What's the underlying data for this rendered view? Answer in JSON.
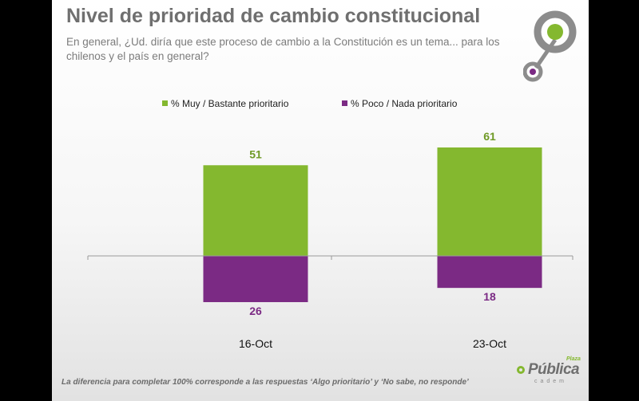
{
  "header": {
    "title": "Nivel de prioridad de cambio constitucional",
    "subtitle": "En general, ¿Ud. diría que este proceso de cambio a la Constitución es un tema... para los chilenos y el país en general?"
  },
  "chart_data": {
    "type": "bar",
    "categories": [
      "16-Oct",
      "23-Oct"
    ],
    "series": [
      {
        "name": "% Muy / Bastante prioritario",
        "values": [
          51,
          61
        ],
        "color": "#84b82f",
        "label_color": "#6f9a26",
        "direction": "up"
      },
      {
        "name": "% Poco / Nada prioritario",
        "values": [
          26,
          18
        ],
        "color": "#7b2a84",
        "label_color": "#7b2a84",
        "direction": "down"
      }
    ],
    "legend_position": "top",
    "grid": false
  },
  "footnote": "La diferencia para completar 100% corresponde a las respuestas ‘Algo prioritario’ y ‘No sabe, no responde’",
  "brand": {
    "main": "Pública",
    "top": "Plaza",
    "sub": "cadem",
    "colors": {
      "green": "#84b82f",
      "purple": "#7b2a84",
      "gray": "#8c8c8c"
    }
  }
}
